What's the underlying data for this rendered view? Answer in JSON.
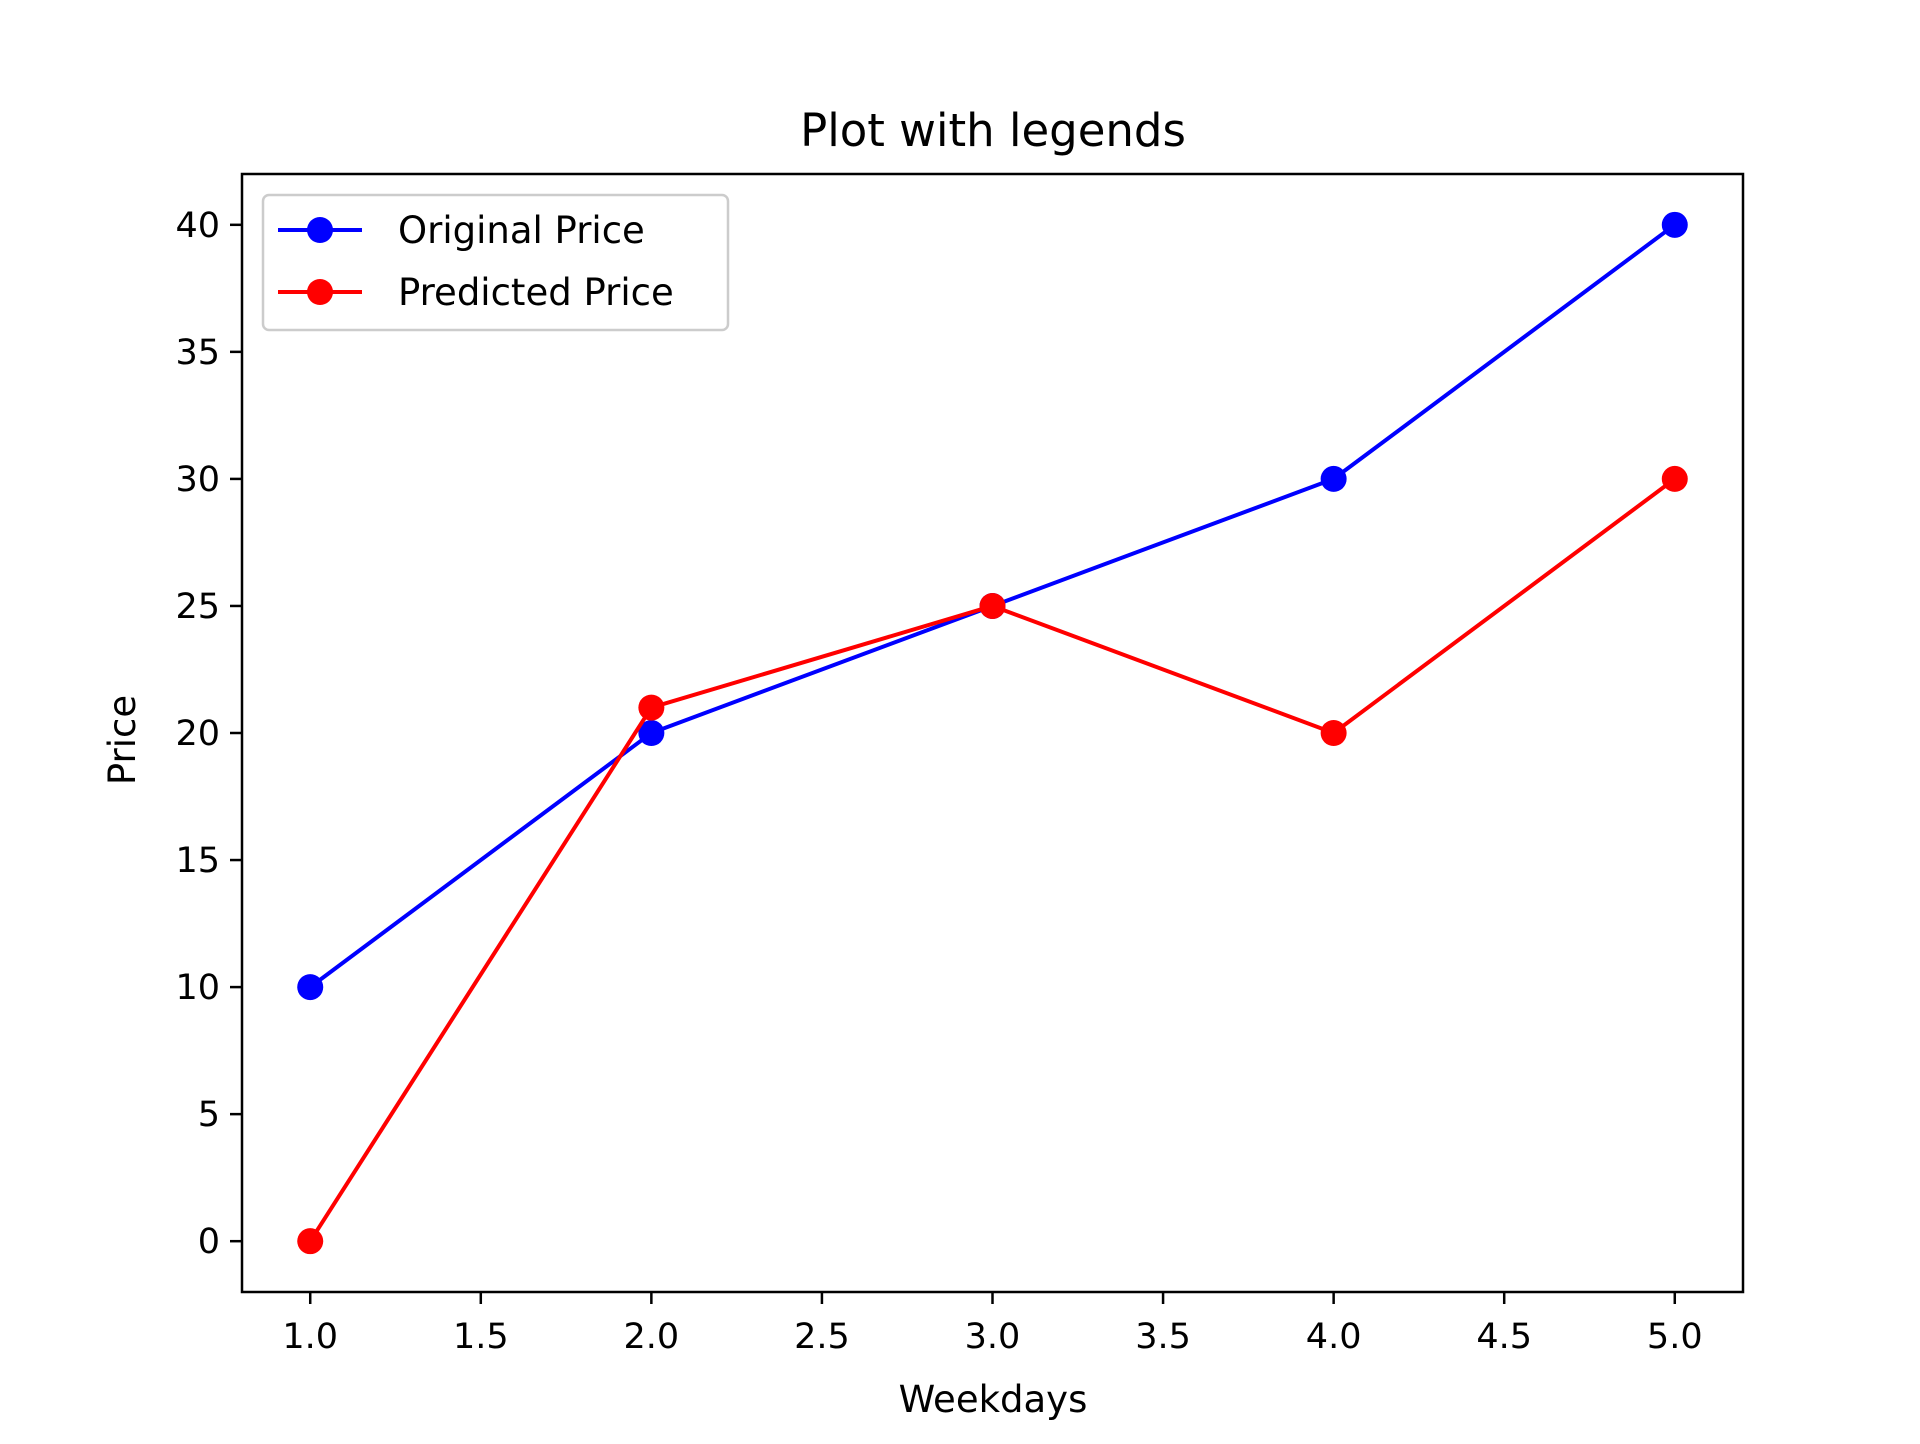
{
  "chart_data": {
    "type": "line",
    "title": "Plot with legends",
    "xlabel": "Weekdays",
    "ylabel": "Price",
    "x": [
      1,
      2,
      3,
      4,
      5
    ],
    "xlim": [
      0.8,
      5.2
    ],
    "ylim": [
      -2,
      42
    ],
    "xticks": [
      1.0,
      1.5,
      2.0,
      2.5,
      3.0,
      3.5,
      4.0,
      4.5,
      5.0
    ],
    "xtick_labels": [
      "1.0",
      "1.5",
      "2.0",
      "2.5",
      "3.0",
      "3.5",
      "4.0",
      "4.5",
      "5.0"
    ],
    "yticks": [
      0,
      5,
      10,
      15,
      20,
      25,
      30,
      35,
      40
    ],
    "ytick_labels": [
      "0",
      "5",
      "10",
      "15",
      "20",
      "25",
      "30",
      "35",
      "40"
    ],
    "grid": false,
    "legend_position": "top-left",
    "series": [
      {
        "name": "Original Price",
        "color": "#0000ff",
        "marker": "circle",
        "values": [
          10,
          20,
          25,
          30,
          40
        ]
      },
      {
        "name": "Predicted Price",
        "color": "#ff0000",
        "marker": "circle",
        "values": [
          0,
          21,
          25,
          20,
          30
        ]
      }
    ]
  }
}
